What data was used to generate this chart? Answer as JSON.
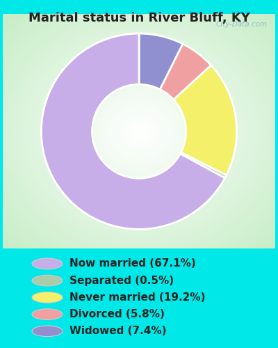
{
  "title": "Marital status in River Bluff, KY",
  "slices": [
    67.1,
    0.5,
    19.2,
    5.8,
    7.4
  ],
  "labels": [
    "Now married (67.1%)",
    "Separated (0.5%)",
    "Never married (19.2%)",
    "Divorced (5.8%)",
    "Widowed (7.4%)"
  ],
  "colors": [
    "#c8aee8",
    "#aacca8",
    "#f5f06a",
    "#f0a0a0",
    "#9090d0"
  ],
  "title_fontsize": 13,
  "legend_fontsize": 11,
  "bg_outer": "#00e8e8",
  "bg_chart_center": "#ffffff",
  "bg_chart_edge": "#c8e8c0",
  "watermark": "City-Data.com",
  "donut_width": 0.52,
  "start_angle": 90,
  "wedge_order": [
    4,
    3,
    2,
    1,
    0
  ]
}
